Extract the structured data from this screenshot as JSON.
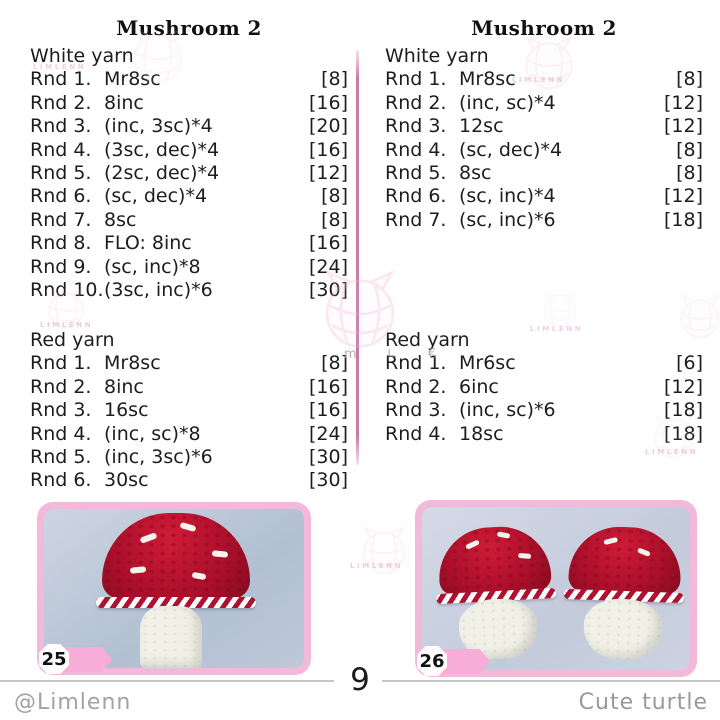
{
  "left_column": {
    "title": "Mushroom 2",
    "white_section": {
      "name": "White yarn",
      "rows": [
        {
          "label": "Rnd 1.",
          "instruction": "Mr8sc",
          "count": "[8]"
        },
        {
          "label": "Rnd 2.",
          "instruction": "8inc",
          "count": "[16]"
        },
        {
          "label": "Rnd 3.",
          "instruction": "(inc, 3sc)*4",
          "count": "[20]"
        },
        {
          "label": "Rnd 4.",
          "instruction": "(3sc, dec)*4",
          "count": "[16]"
        },
        {
          "label": "Rnd 5.",
          "instruction": "(2sc, dec)*4",
          "count": "[12]"
        },
        {
          "label": "Rnd 6.",
          "instruction": "(sc, dec)*4",
          "count": "[8]"
        },
        {
          "label": "Rnd 7.",
          "instruction": "8sc",
          "count": "[8]"
        },
        {
          "label": "Rnd 8.",
          "instruction": "FLO: 8inc",
          "count": "[16]"
        },
        {
          "label": "Rnd 9.",
          "instruction": "(sc, inc)*8",
          "count": "[24]"
        },
        {
          "label": "Rnd 10.",
          "instruction": "(3sc, inc)*6",
          "count": "[30]"
        }
      ]
    },
    "red_section": {
      "name": "Red yarn",
      "rows": [
        {
          "label": "Rnd 1.",
          "instruction": "Mr8sc",
          "count": "[8]"
        },
        {
          "label": "Rnd 2.",
          "instruction": "8inc",
          "count": "[16]"
        },
        {
          "label": "Rnd 3.",
          "instruction": "16sc",
          "count": "[16]"
        },
        {
          "label": "Rnd 4.",
          "instruction": "(inc, sc)*8",
          "count": "[24]"
        },
        {
          "label": "Rnd 5.",
          "instruction": "(inc, 3sc)*6",
          "count": "[30]"
        },
        {
          "label": "Rnd 6.",
          "instruction": "30sc",
          "count": "[30]"
        }
      ]
    },
    "photo_tag": "25"
  },
  "right_column": {
    "title": "Mushroom 2",
    "white_section": {
      "name": "White yarn",
      "rows": [
        {
          "label": "Rnd 1.",
          "instruction": "Mr8sc",
          "count": "[8]"
        },
        {
          "label": "Rnd 2.",
          "instruction": "(inc, sc)*4",
          "count": "[12]"
        },
        {
          "label": "Rnd 3.",
          "instruction": "12sc",
          "count": "[12]"
        },
        {
          "label": "Rnd 4.",
          "instruction": "(sc, dec)*4",
          "count": "[8]"
        },
        {
          "label": "Rnd 5.",
          "instruction": "8sc",
          "count": "[8]"
        },
        {
          "label": "Rnd 6.",
          "instruction": "(sc, inc)*4",
          "count": "[12]"
        },
        {
          "label": "Rnd 7.",
          "instruction": "(sc, inc)*6",
          "count": "[18]"
        }
      ]
    },
    "red_section": {
      "name": "Red yarn",
      "rows": [
        {
          "label": "Rnd 1.",
          "instruction": "Mr6sc",
          "count": "[6]"
        },
        {
          "label": "Rnd 2.",
          "instruction": "6inc",
          "count": "[12]"
        },
        {
          "label": "Rnd 3.",
          "instruction": "(inc, sc)*6",
          "count": "[18]"
        },
        {
          "label": "Rnd 4.",
          "instruction": "18sc",
          "count": "[18]"
        }
      ]
    },
    "photo_tag": "26"
  },
  "footer": {
    "page_number": "9",
    "credit_left": "@Limlenn",
    "credit_right": "Cute turtle"
  },
  "watermark": {
    "brand": "LIMLENN",
    "stray_marks": "m ∟ €"
  },
  "colors": {
    "divider_pink": "#c87aa8",
    "photo_border_pink": "#f2b9da",
    "tag_ribbon_pink": "#f8acd8",
    "mushroom_cap_red": "#ab0f2a",
    "credit_gray": "#a2a2a2"
  }
}
